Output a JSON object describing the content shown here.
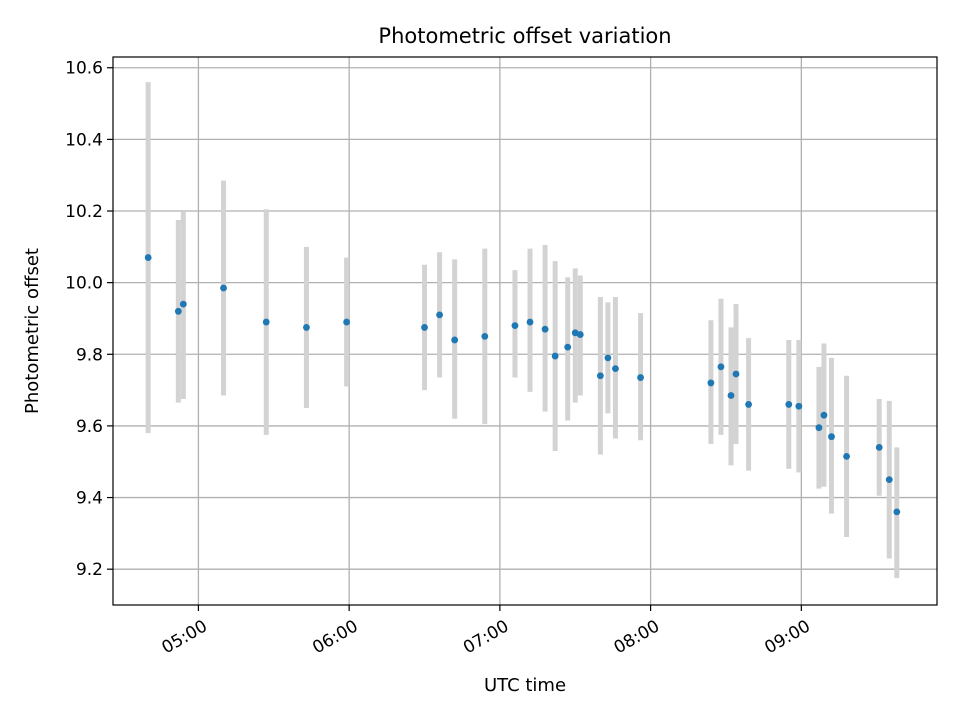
{
  "chart_data": {
    "type": "scatter",
    "title": "Photometric offset variation",
    "xlabel": "UTC time",
    "ylabel": "Photometric offset",
    "x_axis_type": "time",
    "xlim": [
      "04:26",
      "09:54"
    ],
    "ylim": [
      9.1,
      10.63
    ],
    "x_ticks": [
      "05:00",
      "06:00",
      "07:00",
      "08:00",
      "09:00"
    ],
    "y_ticks": [
      9.2,
      9.4,
      9.6,
      9.8,
      10.0,
      10.2,
      10.4,
      10.6
    ],
    "grid": true,
    "colors": {
      "point": "#1f77b4",
      "errorbar": "#d3d3d3",
      "grid": "#b0b0b0"
    },
    "points": [
      {
        "t": "04:40",
        "y": 10.07,
        "ylow": 9.58,
        "yhigh": 10.56
      },
      {
        "t": "04:52",
        "y": 9.92,
        "ylow": 9.665,
        "yhigh": 10.175
      },
      {
        "t": "04:54",
        "y": 9.94,
        "ylow": 9.675,
        "yhigh": 10.2
      },
      {
        "t": "05:10",
        "y": 9.985,
        "ylow": 9.685,
        "yhigh": 10.285
      },
      {
        "t": "05:27",
        "y": 9.89,
        "ylow": 9.575,
        "yhigh": 10.205
      },
      {
        "t": "05:43",
        "y": 9.875,
        "ylow": 9.65,
        "yhigh": 10.1
      },
      {
        "t": "05:59",
        "y": 9.89,
        "ylow": 9.71,
        "yhigh": 10.07
      },
      {
        "t": "06:30",
        "y": 9.875,
        "ylow": 9.7,
        "yhigh": 10.05
      },
      {
        "t": "06:36",
        "y": 9.91,
        "ylow": 9.735,
        "yhigh": 10.085
      },
      {
        "t": "06:42",
        "y": 9.84,
        "ylow": 9.62,
        "yhigh": 10.065
      },
      {
        "t": "06:54",
        "y": 9.85,
        "ylow": 9.605,
        "yhigh": 10.095
      },
      {
        "t": "07:06",
        "y": 9.88,
        "ylow": 9.735,
        "yhigh": 10.035
      },
      {
        "t": "07:12",
        "y": 9.89,
        "ylow": 9.695,
        "yhigh": 10.095
      },
      {
        "t": "07:18",
        "y": 9.87,
        "ylow": 9.64,
        "yhigh": 10.105
      },
      {
        "t": "07:22",
        "y": 9.795,
        "ylow": 9.53,
        "yhigh": 10.06
      },
      {
        "t": "07:27",
        "y": 9.82,
        "ylow": 9.615,
        "yhigh": 10.015
      },
      {
        "t": "07:30",
        "y": 9.86,
        "ylow": 9.665,
        "yhigh": 10.04
      },
      {
        "t": "07:32",
        "y": 9.855,
        "ylow": 9.685,
        "yhigh": 10.02
      },
      {
        "t": "07:40",
        "y": 9.74,
        "ylow": 9.52,
        "yhigh": 9.96
      },
      {
        "t": "07:43",
        "y": 9.79,
        "ylow": 9.635,
        "yhigh": 9.945
      },
      {
        "t": "07:46",
        "y": 9.76,
        "ylow": 9.565,
        "yhigh": 9.96
      },
      {
        "t": "07:56",
        "y": 9.735,
        "ylow": 9.56,
        "yhigh": 9.915
      },
      {
        "t": "08:24",
        "y": 9.72,
        "ylow": 9.55,
        "yhigh": 9.895
      },
      {
        "t": "08:28",
        "y": 9.765,
        "ylow": 9.575,
        "yhigh": 9.955
      },
      {
        "t": "08:32",
        "y": 9.685,
        "ylow": 9.49,
        "yhigh": 9.875
      },
      {
        "t": "08:34",
        "y": 9.745,
        "ylow": 9.55,
        "yhigh": 9.94
      },
      {
        "t": "08:39",
        "y": 9.66,
        "ylow": 9.475,
        "yhigh": 9.845
      },
      {
        "t": "08:55",
        "y": 9.66,
        "ylow": 9.48,
        "yhigh": 9.84
      },
      {
        "t": "08:59",
        "y": 9.655,
        "ylow": 9.47,
        "yhigh": 9.84
      },
      {
        "t": "09:07",
        "y": 9.595,
        "ylow": 9.425,
        "yhigh": 9.765
      },
      {
        "t": "09:09",
        "y": 9.63,
        "ylow": 9.43,
        "yhigh": 9.83
      },
      {
        "t": "09:12",
        "y": 9.57,
        "ylow": 9.355,
        "yhigh": 9.79
      },
      {
        "t": "09:18",
        "y": 9.515,
        "ylow": 9.29,
        "yhigh": 9.74
      },
      {
        "t": "09:31",
        "y": 9.54,
        "ylow": 9.405,
        "yhigh": 9.675
      },
      {
        "t": "09:35",
        "y": 9.45,
        "ylow": 9.23,
        "yhigh": 9.67
      },
      {
        "t": "09:38",
        "y": 9.36,
        "ylow": 9.175,
        "yhigh": 9.54
      }
    ]
  }
}
